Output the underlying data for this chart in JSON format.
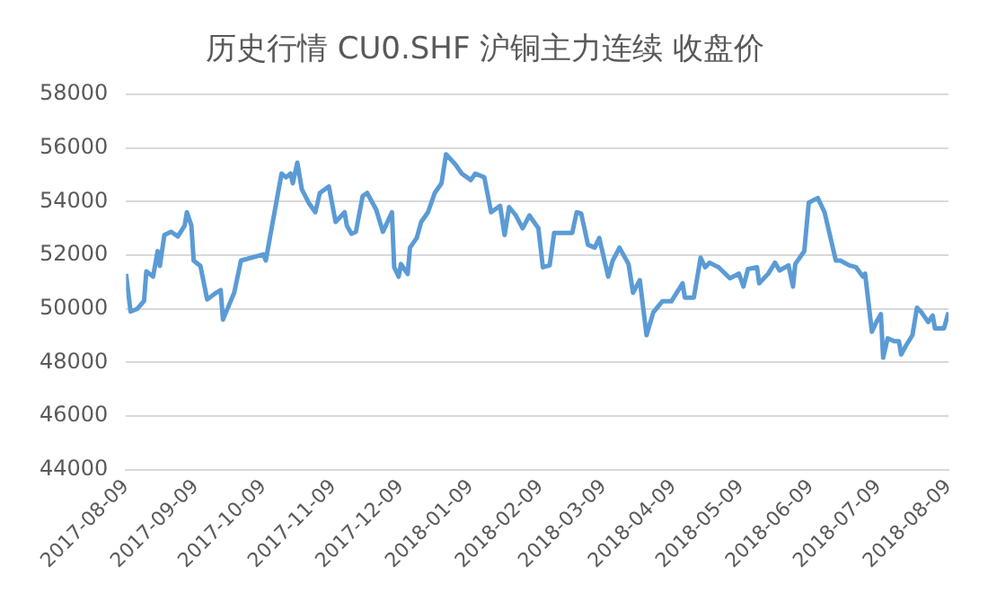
{
  "chart_data": {
    "type": "line",
    "title": "历史行情 CU0.SHF 沪铜主力连续 收盘价",
    "x": [
      "2017-08-09",
      "2017-08-11",
      "2017-08-14",
      "2017-08-17",
      "2017-08-18",
      "2017-08-21",
      "2017-08-23",
      "2017-08-24",
      "2017-08-26",
      "2017-08-29",
      "2017-09-01",
      "2017-09-04",
      "2017-09-05",
      "2017-09-07",
      "2017-09-08",
      "2017-09-11",
      "2017-09-14",
      "2017-09-18",
      "2017-09-20",
      "2017-09-21",
      "2017-09-26",
      "2017-09-29",
      "2017-10-09",
      "2017-10-10",
      "2017-10-17",
      "2017-10-19",
      "2017-10-21",
      "2017-10-22",
      "2017-10-24",
      "2017-10-26",
      "2017-10-29",
      "2017-11-01",
      "2017-11-03",
      "2017-11-07",
      "2017-11-10",
      "2017-11-14",
      "2017-11-15",
      "2017-11-17",
      "2017-11-19",
      "2017-11-22",
      "2017-11-24",
      "2017-11-28",
      "2017-12-01",
      "2017-12-05",
      "2017-12-06",
      "2017-12-08",
      "2017-12-09",
      "2017-12-12",
      "2017-12-13",
      "2017-12-16",
      "2017-12-18",
      "2017-12-21",
      "2017-12-24",
      "2017-12-27",
      "2017-12-29",
      "2018-01-02",
      "2018-01-05",
      "2018-01-09",
      "2018-01-11",
      "2018-01-15",
      "2018-01-18",
      "2018-01-22",
      "2018-01-24",
      "2018-01-26",
      "2018-01-29",
      "2018-02-01",
      "2018-02-04",
      "2018-02-08",
      "2018-02-10",
      "2018-02-13",
      "2018-02-15",
      "2018-02-23",
      "2018-02-25",
      "2018-02-27",
      "2018-03-02",
      "2018-03-05",
      "2018-03-07",
      "2018-03-11",
      "2018-03-13",
      "2018-03-16",
      "2018-03-20",
      "2018-03-22",
      "2018-03-25",
      "2018-03-28",
      "2018-03-31",
      "2018-04-04",
      "2018-04-08",
      "2018-04-13",
      "2018-04-14",
      "2018-04-18",
      "2018-04-21",
      "2018-04-23",
      "2018-04-25",
      "2018-04-29",
      "2018-05-04",
      "2018-05-08",
      "2018-05-10",
      "2018-05-12",
      "2018-05-16",
      "2018-05-17",
      "2018-05-21",
      "2018-05-24",
      "2018-05-26",
      "2018-05-30",
      "2018-06-01",
      "2018-06-02",
      "2018-06-06",
      "2018-06-08",
      "2018-06-12",
      "2018-06-15",
      "2018-06-20",
      "2018-06-22",
      "2018-06-26",
      "2018-06-29",
      "2018-07-02",
      "2018-07-03",
      "2018-07-06",
      "2018-07-08",
      "2018-07-10",
      "2018-07-11",
      "2018-07-13",
      "2018-07-16",
      "2018-07-18",
      "2018-07-19",
      "2018-07-21",
      "2018-07-24",
      "2018-07-26",
      "2018-07-28",
      "2018-07-31",
      "2018-08-02",
      "2018-08-03",
      "2018-08-07",
      "2018-08-09"
    ],
    "series": [
      {
        "color": "#5b9bd5",
        "values": [
          51300,
          49900,
          50000,
          50300,
          51400,
          51200,
          52150,
          51600,
          52750,
          52870,
          52700,
          53100,
          53600,
          53100,
          51800,
          51600,
          50350,
          50600,
          50700,
          49600,
          50600,
          51800,
          52030,
          51800,
          55040,
          54900,
          55040,
          54680,
          55450,
          54460,
          53960,
          53600,
          54320,
          54560,
          53240,
          53600,
          53100,
          52800,
          52870,
          54200,
          54320,
          53700,
          52870,
          53600,
          51550,
          51200,
          51670,
          51300,
          52280,
          52640,
          53240,
          53600,
          54320,
          54680,
          55760,
          55400,
          55040,
          54800,
          55040,
          54900,
          53600,
          53840,
          52750,
          53790,
          53480,
          53000,
          53480,
          53000,
          51550,
          51620,
          52830,
          52830,
          53600,
          53550,
          52390,
          52280,
          52640,
          51200,
          51800,
          52280,
          51670,
          50600,
          51070,
          49020,
          49870,
          50280,
          50280,
          50950,
          50420,
          50420,
          51910,
          51550,
          51720,
          51550,
          51140,
          51310,
          50830,
          51480,
          51550,
          50950,
          51310,
          51720,
          51430,
          51620,
          50830,
          51670,
          52150,
          53960,
          54130,
          53600,
          51800,
          51800,
          51620,
          51550,
          51200,
          51310,
          49150,
          49510,
          49800,
          48180,
          48900,
          48790,
          48790,
          48300,
          48610,
          49020,
          50040,
          49870,
          49510,
          49750,
          49270,
          49270,
          49870
        ]
      }
    ],
    "xlim": [
      "2017-08-09",
      "2018-08-09"
    ],
    "xticks": [
      {
        "value": "2017-08-09",
        "label": "2017-08-09"
      },
      {
        "value": "2017-09-09",
        "label": "2017-09-09"
      },
      {
        "value": "2017-10-09",
        "label": "2017-10-09"
      },
      {
        "value": "2017-11-09",
        "label": "2017-11-09"
      },
      {
        "value": "2017-12-09",
        "label": "2017-12-09"
      },
      {
        "value": "2018-01-09",
        "label": "2018-01-09"
      },
      {
        "value": "2018-02-09",
        "label": "2018-02-09"
      },
      {
        "value": "2018-03-09",
        "label": "2018-03-09"
      },
      {
        "value": "2018-04-09",
        "label": "2018-04-09"
      },
      {
        "value": "2018-05-09",
        "label": "2018-05-09"
      },
      {
        "value": "2018-06-09",
        "label": "2018-06-09"
      },
      {
        "value": "2018-07-09",
        "label": "2018-07-09"
      },
      {
        "value": "2018-08-09",
        "label": "2018-08-09"
      }
    ],
    "ylim": [
      44000,
      58000
    ],
    "yticks": [
      44000,
      46000,
      48000,
      50000,
      52000,
      54000,
      56000,
      58000
    ],
    "grid": "y",
    "legend": false,
    "marker": "none",
    "line_style": "solid"
  }
}
